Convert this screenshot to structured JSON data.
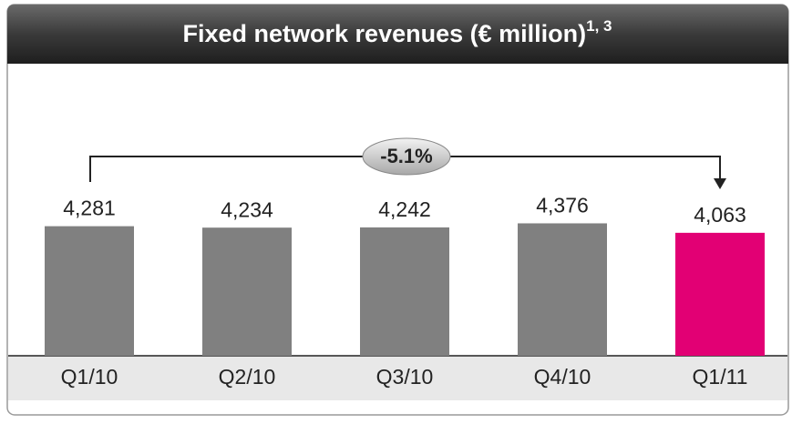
{
  "chart_data": {
    "type": "bar",
    "title": "Fixed network revenues (€ million)",
    "title_superscript": "1, 3",
    "categories": [
      "Q1/10",
      "Q2/10",
      "Q3/10",
      "Q4/10",
      "Q1/11"
    ],
    "values": [
      4281,
      4234,
      4242,
      4376,
      4063
    ],
    "value_labels": [
      "4,281",
      "4,234",
      "4,242",
      "4,376",
      "4,063"
    ],
    "colors": [
      "#808080",
      "#808080",
      "#808080",
      "#808080",
      "#e20074"
    ],
    "ylim": [
      0,
      4600
    ],
    "annotation": "-5.1%"
  }
}
